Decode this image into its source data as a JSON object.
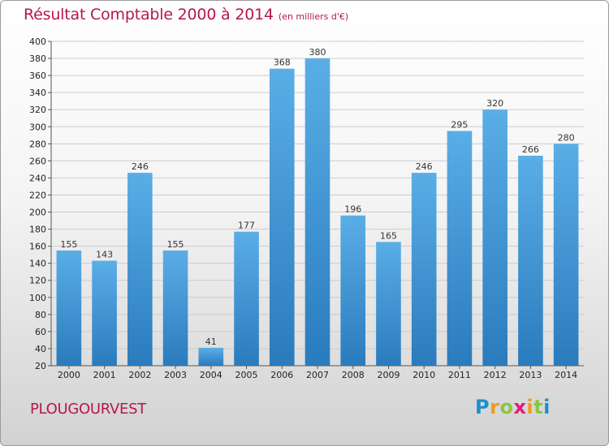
{
  "header": {
    "title": "Résultat Comptable 2000 à 2014",
    "subtitle": "(en milliers d'€)"
  },
  "footer": {
    "commune": "PLOUGOURVEST",
    "logo": [
      "P",
      "r",
      "o",
      "x",
      "i",
      "t",
      "i"
    ],
    "logo_colors": [
      "#1c8fd0",
      "#f29a1e",
      "#8cc63f",
      "#e2197a",
      "#f29a1e",
      "#8cc63f",
      "#1c8fd0"
    ]
  },
  "colors": {
    "bar_light": "#5aaee6",
    "bar_dark": "#2a7bbd",
    "grid": "#cccccc",
    "text_accent": "#b5174f"
  },
  "chart_data": {
    "type": "bar",
    "title": "Résultat Comptable 2000 à 2014",
    "subtitle": "(en milliers d'€)",
    "categories": [
      "2000",
      "2001",
      "2002",
      "2003",
      "2004",
      "2005",
      "2006",
      "2007",
      "2008",
      "2009",
      "2010",
      "2011",
      "2012",
      "2013",
      "2014"
    ],
    "values": [
      155,
      143,
      246,
      155,
      41,
      177,
      368,
      380,
      196,
      165,
      246,
      295,
      320,
      266,
      280
    ],
    "ylim": [
      20,
      400
    ],
    "yticks": [
      20,
      40,
      60,
      80,
      100,
      120,
      140,
      160,
      180,
      200,
      220,
      240,
      260,
      280,
      300,
      320,
      340,
      360,
      380,
      400
    ],
    "grid": true,
    "legend": "none"
  }
}
